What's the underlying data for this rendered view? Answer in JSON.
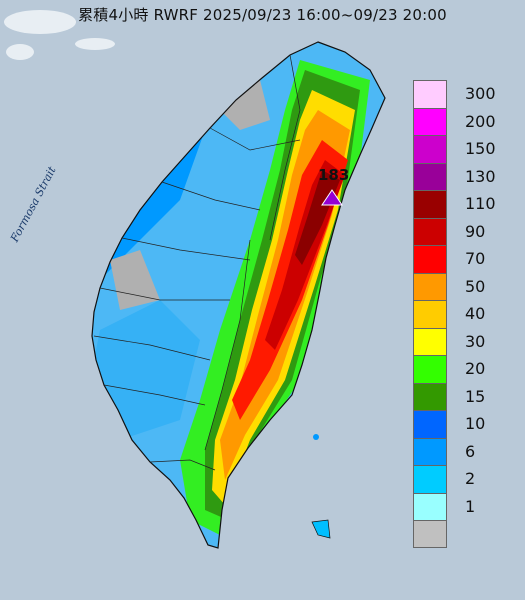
{
  "title": "累積4小時 RWRF 2025/09/23 16:00~09/23 20:00",
  "strait_label": "Formosa Strait",
  "max_marker": {
    "value": "183"
  },
  "legend": {
    "levels": [
      {
        "label": "300",
        "color": "#ffccff"
      },
      {
        "label": "200",
        "color": "#ff00ff"
      },
      {
        "label": "150",
        "color": "#cc00cc"
      },
      {
        "label": "130",
        "color": "#990099"
      },
      {
        "label": "110",
        "color": "#990000"
      },
      {
        "label": "90",
        "color": "#cc0000"
      },
      {
        "label": "70",
        "color": "#ff0000"
      },
      {
        "label": "50",
        "color": "#ff9900"
      },
      {
        "label": "40",
        "color": "#ffcc00"
      },
      {
        "label": "30",
        "color": "#ffff00"
      },
      {
        "label": "20",
        "color": "#33ff00"
      },
      {
        "label": "15",
        "color": "#339900"
      },
      {
        "label": "10",
        "color": "#0066ff"
      },
      {
        "label": "6",
        "color": "#0099ff"
      },
      {
        "label": "2",
        "color": "#00ccff"
      },
      {
        "label": "1",
        "color": "#99ffff"
      },
      {
        "label": "",
        "color": "#c0c0c0"
      }
    ]
  }
}
